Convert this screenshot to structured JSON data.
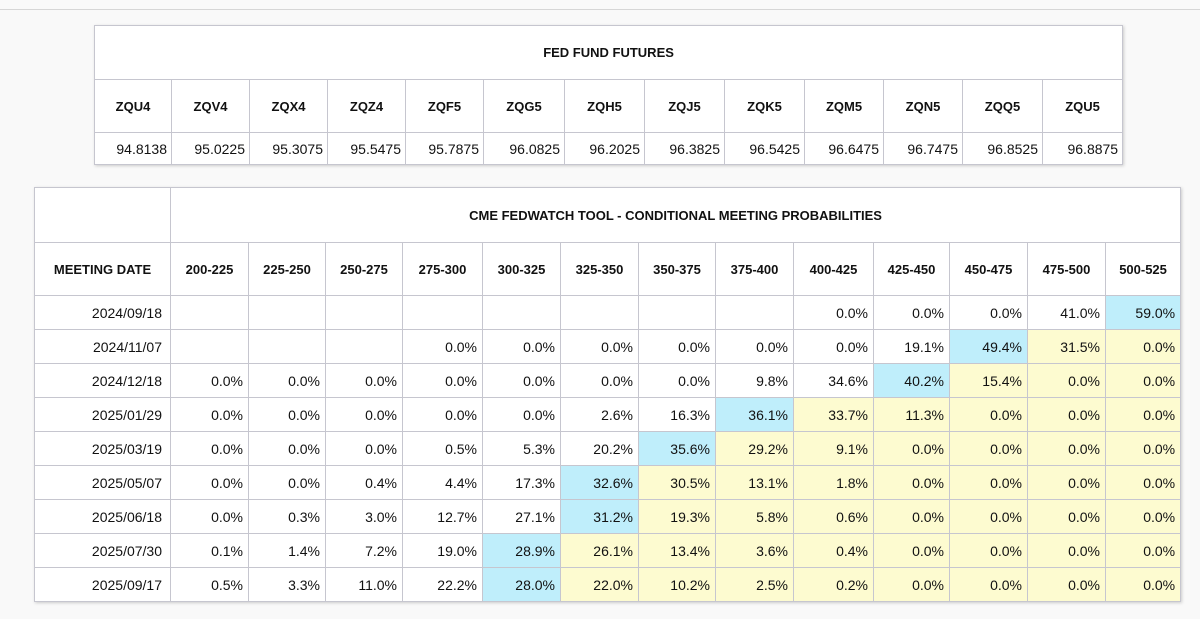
{
  "colors": {
    "max_probability_cell": "#bfeefb",
    "above_max_cell": "#fdfbd0",
    "grid": "#c6c6cf",
    "page_background": "#f9f9f9"
  },
  "futures": {
    "title": "FED FUND FUTURES",
    "contracts": [
      "ZQU4",
      "ZQV4",
      "ZQX4",
      "ZQZ4",
      "ZQF5",
      "ZQG5",
      "ZQH5",
      "ZQJ5",
      "ZQK5",
      "ZQM5",
      "ZQN5",
      "ZQQ5",
      "ZQU5"
    ],
    "prices": [
      "94.8138",
      "95.0225",
      "95.3075",
      "95.5475",
      "95.7875",
      "96.0825",
      "96.2025",
      "96.3825",
      "96.5425",
      "96.6475",
      "96.7475",
      "96.8525",
      "96.8875"
    ]
  },
  "chart_data": {
    "type": "table",
    "title": "CME FEDWATCH TOOL - CONDITIONAL MEETING PROBABILITIES",
    "row_header": "MEETING DATE",
    "columns": [
      "200-225",
      "225-250",
      "250-275",
      "275-300",
      "300-325",
      "325-350",
      "350-375",
      "375-400",
      "400-425",
      "425-450",
      "450-475",
      "475-500",
      "500-525"
    ],
    "rows": [
      {
        "date": "2024/09/18",
        "values": [
          "",
          "",
          "",
          "",
          "",
          "",
          "",
          "",
          "0.0%",
          "0.0%",
          "0.0%",
          "41.0%",
          "59.0%"
        ],
        "max_index": 12
      },
      {
        "date": "2024/11/07",
        "values": [
          "",
          "",
          "",
          "0.0%",
          "0.0%",
          "0.0%",
          "0.0%",
          "0.0%",
          "0.0%",
          "19.1%",
          "49.4%",
          "31.5%",
          "0.0%"
        ],
        "max_index": 10
      },
      {
        "date": "2024/12/18",
        "values": [
          "0.0%",
          "0.0%",
          "0.0%",
          "0.0%",
          "0.0%",
          "0.0%",
          "0.0%",
          "9.8%",
          "34.6%",
          "40.2%",
          "15.4%",
          "0.0%",
          "0.0%"
        ],
        "max_index": 9
      },
      {
        "date": "2025/01/29",
        "values": [
          "0.0%",
          "0.0%",
          "0.0%",
          "0.0%",
          "0.0%",
          "2.6%",
          "16.3%",
          "36.1%",
          "33.7%",
          "11.3%",
          "0.0%",
          "0.0%",
          "0.0%"
        ],
        "max_index": 7
      },
      {
        "date": "2025/03/19",
        "values": [
          "0.0%",
          "0.0%",
          "0.0%",
          "0.5%",
          "5.3%",
          "20.2%",
          "35.6%",
          "29.2%",
          "9.1%",
          "0.0%",
          "0.0%",
          "0.0%",
          "0.0%"
        ],
        "max_index": 6
      },
      {
        "date": "2025/05/07",
        "values": [
          "0.0%",
          "0.0%",
          "0.4%",
          "4.4%",
          "17.3%",
          "32.6%",
          "30.5%",
          "13.1%",
          "1.8%",
          "0.0%",
          "0.0%",
          "0.0%",
          "0.0%"
        ],
        "max_index": 5
      },
      {
        "date": "2025/06/18",
        "values": [
          "0.0%",
          "0.3%",
          "3.0%",
          "12.7%",
          "27.1%",
          "31.2%",
          "19.3%",
          "5.8%",
          "0.6%",
          "0.0%",
          "0.0%",
          "0.0%",
          "0.0%"
        ],
        "max_index": 5
      },
      {
        "date": "2025/07/30",
        "values": [
          "0.1%",
          "1.4%",
          "7.2%",
          "19.0%",
          "28.9%",
          "26.1%",
          "13.4%",
          "3.6%",
          "0.4%",
          "0.0%",
          "0.0%",
          "0.0%",
          "0.0%"
        ],
        "max_index": 4
      },
      {
        "date": "2025/09/17",
        "values": [
          "0.5%",
          "3.3%",
          "11.0%",
          "22.2%",
          "28.0%",
          "22.0%",
          "10.2%",
          "2.5%",
          "0.2%",
          "0.0%",
          "0.0%",
          "0.0%",
          "0.0%"
        ],
        "max_index": 4
      }
    ]
  }
}
